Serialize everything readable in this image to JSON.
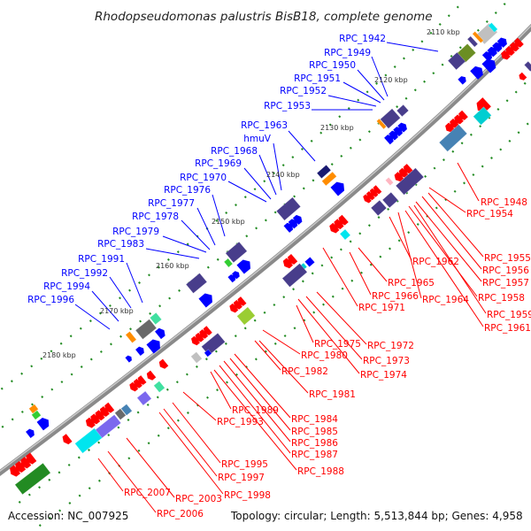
{
  "title": "Rhodopseudomonas palustris BisB18, complete genome",
  "kbp_ticks": [
    "2110 kbp",
    "2120 kbp",
    "2130 kbp",
    "2140 kbp",
    "2150 kbp",
    "2160 kbp",
    "2170 kbp",
    "2180 kbp"
  ],
  "forward_genes": [
    "RPC_1942",
    "RPC_1949",
    "RPC_1950",
    "RPC_1951",
    "RPC_1952",
    "RPC_1953",
    "RPC_1963",
    "hmuV",
    "RPC_1968",
    "RPC_1969",
    "RPC_1970",
    "RPC_1976",
    "RPC_1977",
    "RPC_1978",
    "RPC_1979",
    "RPC_1983",
    "RPC_1991",
    "RPC_1992",
    "RPC_1994",
    "RPC_1996"
  ],
  "reverse_genes": [
    "RPC_1948",
    "RPC_1954",
    "RPC_1955",
    "RPC_1956",
    "RPC_1957",
    "RPC_1958",
    "RPC_1959",
    "RPC_1961",
    "RPC_1962",
    "RPC_1965",
    "RPC_1966",
    "RPC_1964",
    "RPC_1971",
    "RPC_1975",
    "RPC_1972",
    "RPC_1980",
    "RPC_1973",
    "RPC_1974",
    "RPC_1982",
    "RPC_1981",
    "RPC_1989",
    "RPC_1984",
    "RPC_1993",
    "RPC_1985",
    "RPC_1986",
    "RPC_1987",
    "RPC_1988",
    "RPC_1995",
    "RPC_1997",
    "RPC_1998",
    "RPC_2007",
    "RPC_2003",
    "RPC_2006"
  ],
  "footer": {
    "accession": "Accession: NC_007925",
    "summary": "Topology: circular; Length: 5,513,844 bp; Genes: 4,958"
  },
  "colors": {
    "forward": "#0000ff",
    "reverse": "#ff0000",
    "backbone": "#808080",
    "tick": "#228b22"
  }
}
